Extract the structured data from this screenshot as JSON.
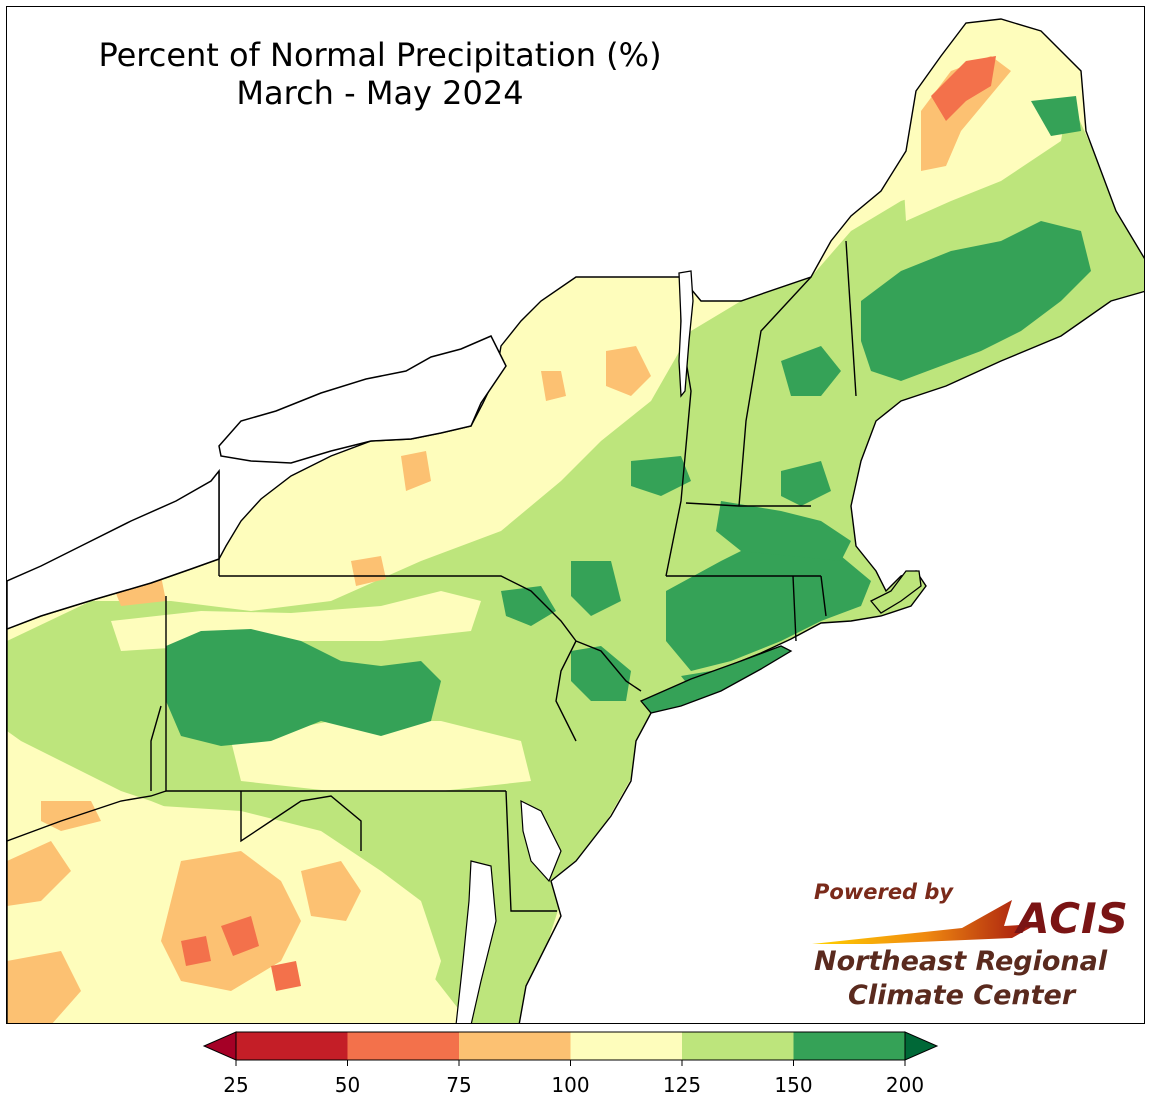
{
  "title": {
    "line1": "Percent of Normal Precipitation (%)",
    "line2": "March - May 2024"
  },
  "colors": {
    "c25": "#c41e27",
    "c50": "#f3714b",
    "c75": "#fcc172",
    "c100": "#fefdbc",
    "c125": "#bde57c",
    "c150": "#35a257",
    "c200": "#006837",
    "water": "#ffffff",
    "border": "#000000"
  },
  "legend": {
    "ticks": [
      "25",
      "50",
      "75",
      "100",
      "125",
      "150",
      "200"
    ],
    "bins": [
      {
        "from": 25,
        "to": 50,
        "color": "#c41e27"
      },
      {
        "from": 50,
        "to": 75,
        "color": "#f3714b"
      },
      {
        "from": 75,
        "to": 100,
        "color": "#fcc172"
      },
      {
        "from": 100,
        "to": 125,
        "color": "#fefdbc"
      },
      {
        "from": 125,
        "to": 150,
        "color": "#bde57c"
      },
      {
        "from": 150,
        "to": 200,
        "color": "#35a257"
      }
    ],
    "extend_low_color": "#a50026",
    "extend_high_color": "#006837"
  },
  "logo": {
    "powered_by": "Powered by",
    "acis": "ACIS",
    "org_line1": "Northeast Regional",
    "org_line2": "Climate Center"
  }
}
